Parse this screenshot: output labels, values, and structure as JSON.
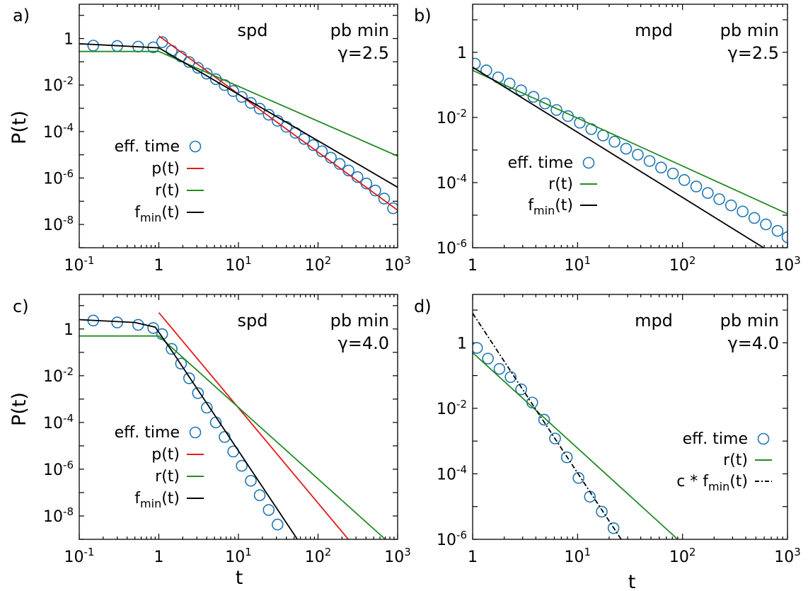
{
  "figure": {
    "xlabel": "t",
    "ylabel": "P(t)"
  },
  "colors": {
    "marker": "#1f77b4",
    "p": "#e41a1c",
    "r": "#228b22",
    "f": "#000000"
  },
  "chart_data": [
    {
      "panel": "a)",
      "type": "line",
      "scale": "log-log",
      "label_left": "spd",
      "label_right1": "pb min",
      "label_right2": "γ=2.5",
      "xlim": [
        0.1,
        1000
      ],
      "ylim": [
        1e-09,
        30
      ],
      "xticks": [
        {
          "v": 0.1,
          "b": "10",
          "e": "-1"
        },
        {
          "v": 1,
          "b": "1",
          "e": ""
        },
        {
          "v": 10,
          "b": "10",
          "e": "1"
        },
        {
          "v": 100,
          "b": "10",
          "e": "2"
        },
        {
          "v": 1000,
          "b": "10",
          "e": "3"
        }
      ],
      "yticks": [
        {
          "v": 1,
          "b": "1",
          "e": ""
        },
        {
          "v": 0.01,
          "b": "10",
          "e": "-2"
        },
        {
          "v": 0.0001,
          "b": "10",
          "e": "-4"
        },
        {
          "v": 1e-06,
          "b": "10",
          "e": "-6"
        },
        {
          "v": 1e-08,
          "b": "10",
          "e": "-8"
        }
      ],
      "series": [
        {
          "name": "eff. time",
          "kind": "marker",
          "x": [
            0.15,
            0.3,
            0.55,
            0.85,
            1.1,
            1.45,
            1.9,
            2.4,
            3.1,
            4.0,
            5.2,
            6.7,
            8.6,
            11,
            14.3,
            18.5,
            24,
            31,
            40,
            52,
            67,
            87,
            112,
            145,
            187,
            242,
            313,
            405,
            524,
            677,
            876
          ],
          "y": [
            0.5,
            0.48,
            0.45,
            0.42,
            0.7,
            0.3,
            0.17,
            0.098,
            0.055,
            0.031,
            0.018,
            0.01,
            0.0055,
            0.0031,
            0.0017,
            0.00096,
            0.00053,
            0.00029,
            0.00016,
            8.8e-05,
            4.8e-05,
            2.6e-05,
            1.4e-05,
            7.5e-06,
            4e-06,
            2.1e-06,
            1.1e-06,
            5.8e-07,
            2.9e-07,
            1.3e-07,
            5e-08
          ]
        },
        {
          "name": "p(t)",
          "kind": "line",
          "style": "solid",
          "x": [
            1,
            1000
          ],
          "y": [
            1.3,
            4.1e-08
          ]
        },
        {
          "name": "r(t)",
          "kind": "line",
          "style": "solid",
          "x": [
            0.1,
            1,
            1000
          ],
          "y": [
            0.28,
            0.28,
            8.8e-06
          ]
        },
        {
          "name": "f_min(t)",
          "kind": "line",
          "style": "solid",
          "x": [
            0.1,
            1,
            1000
          ],
          "y": [
            0.6,
            0.4,
            4e-07
          ]
        }
      ],
      "legend": [
        {
          "label": "eff. time",
          "sub": "",
          "after": "",
          "sym": "marker"
        },
        {
          "label": "p(t)",
          "sub": "",
          "after": "",
          "sym": "p"
        },
        {
          "label": "r(t)",
          "sub": "",
          "after": "",
          "sym": "r"
        },
        {
          "label": "f",
          "sub": "min",
          "after": "(t)",
          "sym": "f"
        }
      ]
    },
    {
      "panel": "b)",
      "type": "line",
      "scale": "log-log",
      "label_left": "mpd",
      "label_right1": "pb min",
      "label_right2": "γ=2.5",
      "xlim": [
        1,
        1000
      ],
      "ylim": [
        1e-06,
        30
      ],
      "xticks": [
        {
          "v": 1,
          "b": "1",
          "e": ""
        },
        {
          "v": 10,
          "b": "10",
          "e": "1"
        },
        {
          "v": 100,
          "b": "10",
          "e": "2"
        },
        {
          "v": 1000,
          "b": "10",
          "e": "3"
        }
      ],
      "yticks": [
        {
          "v": 1,
          "b": "1",
          "e": ""
        },
        {
          "v": 0.01,
          "b": "10",
          "e": "-2"
        },
        {
          "v": 0.0001,
          "b": "10",
          "e": "-4"
        },
        {
          "v": 1e-06,
          "b": "10",
          "e": "-6"
        }
      ],
      "series": [
        {
          "name": "eff. time",
          "kind": "marker",
          "x": [
            1.05,
            1.35,
            1.75,
            2.25,
            2.9,
            3.8,
            4.9,
            6.3,
            8.1,
            10.5,
            13.5,
            17.5,
            22.5,
            29,
            37.5,
            48.5,
            62.5,
            81,
            104,
            135,
            174,
            224,
            290,
            374,
            483,
            623,
            804,
            1000
          ],
          "y": [
            0.45,
            0.28,
            0.17,
            0.11,
            0.068,
            0.043,
            0.027,
            0.017,
            0.011,
            0.0069,
            0.0044,
            0.0028,
            0.0018,
            0.0011,
            0.00072,
            0.00046,
            0.00029,
            0.00019,
            0.00012,
            7.6e-05,
            4.8e-05,
            3.1e-05,
            2e-05,
            1.3e-05,
            8.2e-06,
            5.2e-06,
            3.3e-06,
            2.1e-06
          ]
        },
        {
          "name": "r(t)",
          "kind": "line",
          "style": "solid",
          "x": [
            1,
            1000
          ],
          "y": [
            0.28,
            1.1e-05
          ]
        },
        {
          "name": "f_min(t)",
          "kind": "line",
          "style": "solid",
          "x": [
            1,
            1000
          ],
          "y": [
            0.35,
            3.5e-07
          ]
        }
      ],
      "legend": [
        {
          "label": "eff. time",
          "sub": "",
          "after": "",
          "sym": "marker"
        },
        {
          "label": "r(t)",
          "sub": "",
          "after": "",
          "sym": "r"
        },
        {
          "label": "f",
          "sub": "min",
          "after": "(t)",
          "sym": "f"
        }
      ]
    },
    {
      "panel": "c)",
      "type": "line",
      "scale": "log-log",
      "label_left": "spd",
      "label_right1": "pb min",
      "label_right2": "γ=4.0",
      "xlim": [
        0.1,
        1000
      ],
      "ylim": [
        1e-09,
        30
      ],
      "xticks": [
        {
          "v": 0.1,
          "b": "10",
          "e": "-1"
        },
        {
          "v": 1,
          "b": "1",
          "e": ""
        },
        {
          "v": 10,
          "b": "10",
          "e": "1"
        },
        {
          "v": 100,
          "b": "10",
          "e": "2"
        },
        {
          "v": 1000,
          "b": "10",
          "e": "3"
        }
      ],
      "yticks": [
        {
          "v": 1,
          "b": "1",
          "e": ""
        },
        {
          "v": 0.01,
          "b": "10",
          "e": "-2"
        },
        {
          "v": 0.0001,
          "b": "10",
          "e": "-4"
        },
        {
          "v": 1e-06,
          "b": "10",
          "e": "-6"
        },
        {
          "v": 1e-08,
          "b": "10",
          "e": "-8"
        }
      ],
      "series": [
        {
          "name": "eff. time",
          "kind": "marker",
          "x": [
            0.15,
            0.3,
            0.55,
            0.85,
            1.1,
            1.45,
            1.9,
            2.4,
            3.1,
            4.0,
            5.2,
            6.7,
            8.6,
            11,
            14.3,
            18.5,
            24,
            31
          ],
          "y": [
            2.3,
            1.9,
            1.5,
            1.1,
            0.6,
            0.14,
            0.033,
            0.0078,
            0.0018,
            0.00043,
            0.0001,
            2.4e-05,
            5.7e-06,
            1.4e-06,
            3.2e-07,
            7.7e-08,
            1.8e-08,
            4.3e-09
          ]
        },
        {
          "name": "p(t)",
          "kind": "line",
          "style": "solid",
          "x": [
            1,
            240
          ],
          "y": [
            5,
            1e-09
          ]
        },
        {
          "name": "r(t)",
          "kind": "line",
          "style": "solid",
          "x": [
            0.1,
            1,
            700
          ],
          "y": [
            0.5,
            0.5,
            1e-09
          ]
        },
        {
          "name": "f_min(t)",
          "kind": "line",
          "style": "solid",
          "x": [
            0.1,
            0.5,
            0.9,
            1.1,
            1.5,
            55
          ],
          "y": [
            2.5,
            1.9,
            1.2,
            0.45,
            0.1,
            1e-09
          ]
        }
      ],
      "legend": [
        {
          "label": "eff. time",
          "sub": "",
          "after": "",
          "sym": "marker"
        },
        {
          "label": "p(t)",
          "sub": "",
          "after": "",
          "sym": "p"
        },
        {
          "label": "r(t)",
          "sub": "",
          "after": "",
          "sym": "r"
        },
        {
          "label": "f",
          "sub": "min",
          "after": "(t)",
          "sym": "f"
        }
      ]
    },
    {
      "panel": "d)",
      "type": "line",
      "scale": "log-log",
      "label_left": "mpd",
      "label_right1": "pb min",
      "label_right2": "γ=4.0",
      "xlim": [
        1,
        1000
      ],
      "ylim": [
        1e-06,
        30
      ],
      "xticks": [
        {
          "v": 1,
          "b": "1",
          "e": ""
        },
        {
          "v": 10,
          "b": "10",
          "e": "1"
        },
        {
          "v": 100,
          "b": "10",
          "e": "2"
        },
        {
          "v": 1000,
          "b": "10",
          "e": "3"
        }
      ],
      "yticks": [
        {
          "v": 1,
          "b": "1",
          "e": ""
        },
        {
          "v": 0.01,
          "b": "10",
          "e": "-2"
        },
        {
          "v": 0.0001,
          "b": "10",
          "e": "-4"
        },
        {
          "v": 1e-06,
          "b": "10",
          "e": "-6"
        }
      ],
      "series": [
        {
          "name": "eff. time",
          "kind": "marker",
          "x": [
            1.1,
            1.4,
            1.8,
            2.3,
            2.9,
            3.7,
            4.8,
            6.1,
            7.9,
            10.2,
            13.1,
            17,
            22
          ],
          "y": [
            0.7,
            0.33,
            0.16,
            0.09,
            0.038,
            0.015,
            0.0045,
            0.0012,
            0.00032,
            7.5e-05,
            2e-05,
            7e-06,
            2.2e-06
          ]
        },
        {
          "name": "r(t)",
          "kind": "line",
          "style": "solid",
          "x": [
            1,
            90
          ],
          "y": [
            0.5,
            1e-06
          ]
        },
        {
          "name": "c * f_min(t)",
          "kind": "line",
          "style": "dashdot",
          "x": [
            1,
            30
          ],
          "y": [
            8,
            5e-07
          ]
        }
      ],
      "legend": [
        {
          "label": "eff. time",
          "sub": "",
          "after": "",
          "sym": "marker"
        },
        {
          "label": "r(t)",
          "sub": "",
          "after": "",
          "sym": "r"
        },
        {
          "label": "c * f",
          "sub": "min",
          "after": "(t)",
          "sym": "fdash"
        }
      ]
    }
  ]
}
